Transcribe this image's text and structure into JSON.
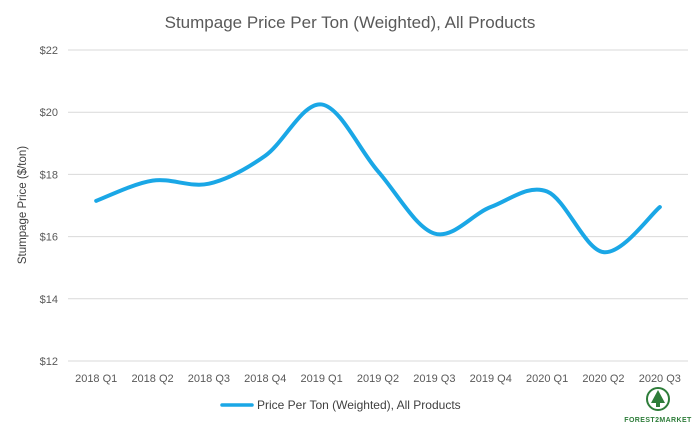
{
  "chart_data": {
    "type": "line",
    "title": "Stumpage Price Per Ton (Weighted), All Products",
    "xlabel": "",
    "ylabel": "Stumpage Price ($/ton)",
    "categories": [
      "2018 Q1",
      "2018 Q2",
      "2018 Q3",
      "2018 Q4",
      "2019 Q1",
      "2019 Q2",
      "2019 Q3",
      "2019 Q4",
      "2020 Q1",
      "2020 Q2",
      "2020 Q3"
    ],
    "y_ticks": [
      "$12",
      "$14",
      "$16",
      "$18",
      "$20",
      "$22"
    ],
    "ylim": [
      12,
      22
    ],
    "grid": true,
    "legend_position": "bottom",
    "series": [
      {
        "name": "Price Per Ton (Weighted), All Products",
        "values": [
          17.15,
          17.8,
          17.7,
          18.6,
          20.25,
          18.1,
          16.1,
          16.95,
          17.45,
          15.5,
          16.95
        ],
        "color": "#1aa7e6"
      }
    ]
  },
  "logo": {
    "brand_text": "FOREST2MARKET",
    "color": "#2e7d3a"
  }
}
